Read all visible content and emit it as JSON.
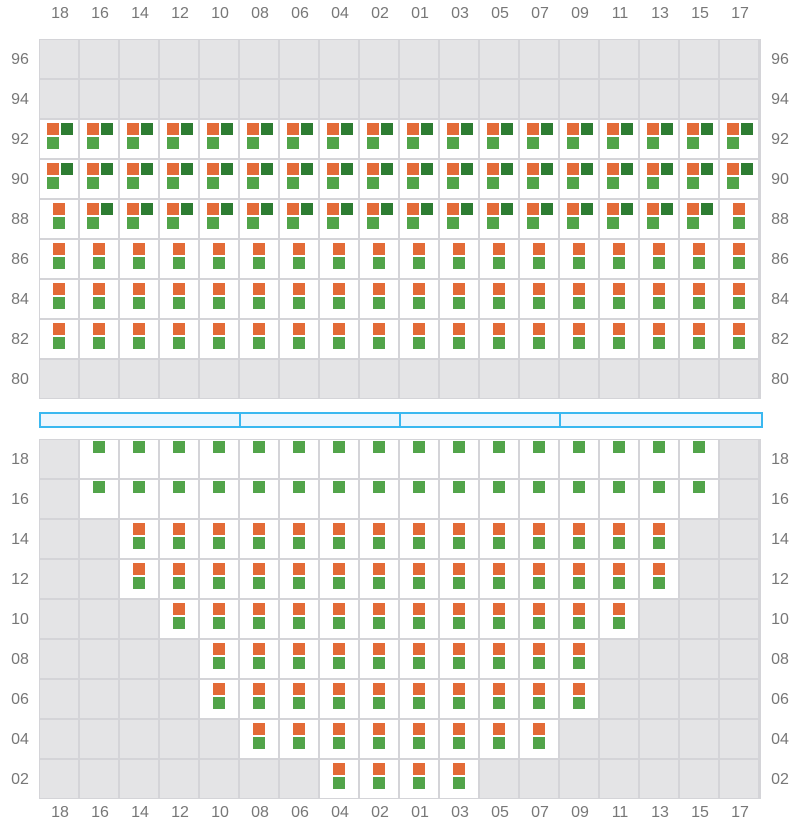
{
  "columns": [
    "18",
    "16",
    "14",
    "12",
    "10",
    "08",
    "06",
    "04",
    "02",
    "01",
    "03",
    "05",
    "07",
    "09",
    "11",
    "13",
    "15",
    "17"
  ],
  "colors": {
    "orange": "#e36b37",
    "light_green": "#52a44a",
    "dark_green": "#2e7d32",
    "unavailable": "#e4e4e6",
    "stage": "#3bb8f0"
  },
  "legend_codes": {
    "G": "unavailable",
    "L": "light-green",
    "OL": "orange + light-green",
    "OLD": "orange + light-green + dark-green"
  },
  "upper_section": {
    "rows": [
      {
        "label": "96",
        "cells": [
          "G",
          "G",
          "G",
          "G",
          "G",
          "G",
          "G",
          "G",
          "G",
          "G",
          "G",
          "G",
          "G",
          "G",
          "G",
          "G",
          "G",
          "G"
        ]
      },
      {
        "label": "94",
        "cells": [
          "G",
          "G",
          "G",
          "G",
          "G",
          "G",
          "G",
          "G",
          "G",
          "G",
          "G",
          "G",
          "G",
          "G",
          "G",
          "G",
          "G",
          "G"
        ]
      },
      {
        "label": "92",
        "cells": [
          "OLD",
          "OLD",
          "OLD",
          "OLD",
          "OLD",
          "OLD",
          "OLD",
          "OLD",
          "OLD",
          "OLD",
          "OLD",
          "OLD",
          "OLD",
          "OLD",
          "OLD",
          "OLD",
          "OLD",
          "OLD"
        ]
      },
      {
        "label": "90",
        "cells": [
          "OLD",
          "OLD",
          "OLD",
          "OLD",
          "OLD",
          "OLD",
          "OLD",
          "OLD",
          "OLD",
          "OLD",
          "OLD",
          "OLD",
          "OLD",
          "OLD",
          "OLD",
          "OLD",
          "OLD",
          "OLD"
        ]
      },
      {
        "label": "88",
        "cells": [
          "OL",
          "OLD",
          "OLD",
          "OLD",
          "OLD",
          "OLD",
          "OLD",
          "OLD",
          "OLD",
          "OLD",
          "OLD",
          "OLD",
          "OLD",
          "OLD",
          "OLD",
          "OLD",
          "OLD",
          "OL"
        ]
      },
      {
        "label": "86",
        "cells": [
          "OL",
          "OL",
          "OL",
          "OL",
          "OL",
          "OL",
          "OL",
          "OL",
          "OL",
          "OL",
          "OL",
          "OL",
          "OL",
          "OL",
          "OL",
          "OL",
          "OL",
          "OL"
        ]
      },
      {
        "label": "84",
        "cells": [
          "OL",
          "OL",
          "OL",
          "OL",
          "OL",
          "OL",
          "OL",
          "OL",
          "OL",
          "OL",
          "OL",
          "OL",
          "OL",
          "OL",
          "OL",
          "OL",
          "OL",
          "OL"
        ]
      },
      {
        "label": "82",
        "cells": [
          "OL",
          "OL",
          "OL",
          "OL",
          "OL",
          "OL",
          "OL",
          "OL",
          "OL",
          "OL",
          "OL",
          "OL",
          "OL",
          "OL",
          "OL",
          "OL",
          "OL",
          "OL"
        ]
      },
      {
        "label": "80",
        "cells": [
          "G",
          "G",
          "G",
          "G",
          "G",
          "G",
          "G",
          "G",
          "G",
          "G",
          "G",
          "G",
          "G",
          "G",
          "G",
          "G",
          "G",
          "G"
        ]
      }
    ]
  },
  "stage_segments": 4,
  "lower_section": {
    "rows": [
      {
        "label": "18",
        "cells": [
          "G",
          "L",
          "L",
          "L",
          "L",
          "L",
          "L",
          "L",
          "L",
          "L",
          "L",
          "L",
          "L",
          "L",
          "L",
          "L",
          "L",
          "G"
        ]
      },
      {
        "label": "16",
        "cells": [
          "G",
          "L",
          "L",
          "L",
          "L",
          "L",
          "L",
          "L",
          "L",
          "L",
          "L",
          "L",
          "L",
          "L",
          "L",
          "L",
          "L",
          "G"
        ]
      },
      {
        "label": "14",
        "cells": [
          "G",
          "G",
          "OL",
          "OL",
          "OL",
          "OL",
          "OL",
          "OL",
          "OL",
          "OL",
          "OL",
          "OL",
          "OL",
          "OL",
          "OL",
          "OL",
          "G",
          "G"
        ]
      },
      {
        "label": "12",
        "cells": [
          "G",
          "G",
          "OL",
          "OL",
          "OL",
          "OL",
          "OL",
          "OL",
          "OL",
          "OL",
          "OL",
          "OL",
          "OL",
          "OL",
          "OL",
          "OL",
          "G",
          "G"
        ]
      },
      {
        "label": "10",
        "cells": [
          "G",
          "G",
          "G",
          "OL",
          "OL",
          "OL",
          "OL",
          "OL",
          "OL",
          "OL",
          "OL",
          "OL",
          "OL",
          "OL",
          "OL",
          "G",
          "G",
          "G"
        ]
      },
      {
        "label": "08",
        "cells": [
          "G",
          "G",
          "G",
          "G",
          "OL",
          "OL",
          "OL",
          "OL",
          "OL",
          "OL",
          "OL",
          "OL",
          "OL",
          "OL",
          "G",
          "G",
          "G",
          "G"
        ]
      },
      {
        "label": "06",
        "cells": [
          "G",
          "G",
          "G",
          "G",
          "OL",
          "OL",
          "OL",
          "OL",
          "OL",
          "OL",
          "OL",
          "OL",
          "OL",
          "OL",
          "G",
          "G",
          "G",
          "G"
        ]
      },
      {
        "label": "04",
        "cells": [
          "G",
          "G",
          "G",
          "G",
          "G",
          "OL",
          "OL",
          "OL",
          "OL",
          "OL",
          "OL",
          "OL",
          "OL",
          "G",
          "G",
          "G",
          "G",
          "G"
        ]
      },
      {
        "label": "02",
        "cells": [
          "G",
          "G",
          "G",
          "G",
          "G",
          "G",
          "G",
          "OL",
          "OL",
          "OL",
          "OL",
          "G",
          "G",
          "G",
          "G",
          "G",
          "G",
          "G"
        ]
      }
    ]
  }
}
